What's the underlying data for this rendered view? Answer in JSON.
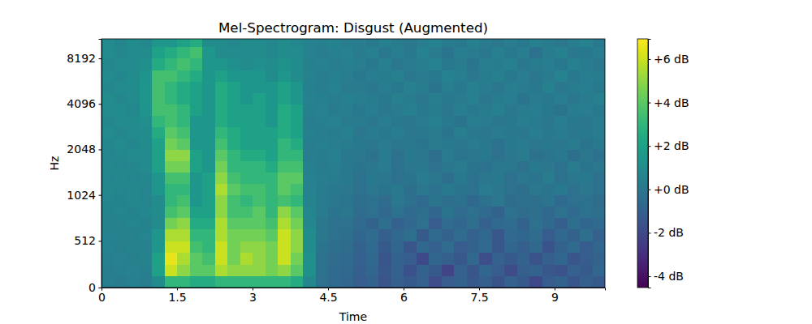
{
  "chart_data": {
    "type": "heatmap",
    "title": "Mel-Spectrogram: Disgust (Augmented)",
    "x_label": "Time",
    "y_label": "Hz",
    "xlim": [
      0,
      10
    ],
    "ylim": [
      0,
      11025
    ],
    "xticks": [
      0,
      1.5,
      3,
      4.5,
      6,
      7.5,
      9
    ],
    "yticks": [
      0,
      512,
      1024,
      2048,
      4096,
      8192
    ],
    "log": "y",
    "color": "viridis",
    "x_bins": [
      0,
      0.25,
      0.5,
      0.75,
      1,
      1.25,
      1.5,
      1.75,
      2,
      2.25,
      2.5,
      2.75,
      3,
      3.25,
      3.5,
      3.75,
      4,
      4.25,
      4.5,
      4.75,
      5,
      5.25,
      5.5,
      5.75,
      6,
      6.25,
      6.5,
      6.75,
      7,
      7.25,
      7.5,
      7.75,
      8,
      8.25,
      8.5,
      8.75,
      9,
      9.25,
      9.5,
      9.75,
      10
    ],
    "y_bins": [
      0,
      128,
      256,
      384,
      512,
      640,
      768,
      896,
      1024,
      1218,
      1448,
      1722,
      2048,
      2435,
      2896,
      3444,
      4096,
      4871,
      5793,
      6889,
      8192,
      9742,
      11025
    ],
    "cells": [
      [
        0.3,
        0.2,
        0.4,
        0.3,
        1,
        3,
        3,
        2.5,
        2.5,
        3,
        3,
        3,
        3,
        3,
        3,
        2.5,
        0.8,
        -0.3,
        -0.6,
        -0.8,
        -1.2,
        -0.9,
        -1.5,
        -1.1,
        -1.3,
        -1,
        -1.8,
        -1.2,
        -0.9,
        -1.4,
        -1.1,
        -1.6,
        -1,
        -1.3,
        -2,
        -1.2,
        -0.9,
        -1.5,
        -1.1,
        -1.3
      ],
      [
        0.3,
        0.4,
        0.5,
        0.4,
        2,
        6,
        5,
        4,
        4,
        5.5,
        5,
        5,
        5,
        4.5,
        5,
        4,
        1.2,
        -0.2,
        -0.6,
        -0.7,
        -1.1,
        -0.8,
        -1.4,
        -1,
        -1.7,
        -0.9,
        -1.3,
        -2.2,
        -1,
        -1.5,
        -0.8,
        -1.2,
        -1.9,
        -1.1,
        -0.9,
        -1.4,
        -1.6,
        -1,
        -1.3,
        -0.8
      ],
      [
        0.4,
        0.5,
        0.4,
        0.6,
        2,
        6.5,
        5.5,
        4,
        3.5,
        6,
        4.5,
        5.5,
        5,
        4.5,
        6,
        4.5,
        1.2,
        -0.2,
        -0.5,
        -0.6,
        -1,
        -0.7,
        -1.5,
        -0.9,
        -1.2,
        -2,
        -0.8,
        -1.1,
        -1.4,
        -0.7,
        -1.8,
        -1,
        -1.3,
        -0.9,
        -1.6,
        -1.1,
        -0.8,
        -1.5,
        -1.2,
        -0.9
      ],
      [
        0.5,
        0.4,
        0.6,
        0.5,
        1.5,
        6,
        6,
        3.5,
        3,
        6,
        4.5,
        5,
        5,
        4.5,
        6,
        5,
        1,
        -0.1,
        -0.4,
        -0.5,
        -0.9,
        -0.6,
        -1.3,
        -0.8,
        -1.5,
        -0.7,
        -1,
        -0.5,
        -1.2,
        -0.9,
        -0.6,
        -1.4,
        -0.8,
        -1.1,
        -0.7,
        -1.6,
        -0.9,
        -0.6,
        -1.2,
        -0.8
      ],
      [
        0.5,
        0.6,
        0.5,
        0.7,
        1.5,
        5.5,
        5.5,
        3,
        3,
        5.5,
        4.5,
        4.5,
        4.5,
        4,
        6,
        5,
        1,
        0,
        -0.3,
        -0.4,
        -0.8,
        -0.5,
        -1.1,
        -0.7,
        -0.4,
        -1.3,
        -0.6,
        -0.9,
        -0.5,
        -1,
        -0.7,
        -1.4,
        -0.6,
        -0.8,
        -0.5,
        -1.2,
        -0.7,
        -0.9,
        -0.4,
        -1
      ],
      [
        0.6,
        0.5,
        0.7,
        0.6,
        1,
        4.5,
        5,
        2.5,
        2.5,
        5.5,
        4,
        4,
        4,
        3.5,
        5.5,
        4.5,
        0.8,
        0,
        -0.2,
        -0.3,
        -0.6,
        -0.9,
        -0.4,
        -1,
        -0.7,
        -0.3,
        -1.2,
        -0.5,
        -0.8,
        -0.4,
        -1,
        -0.6,
        -0.5,
        -0.9,
        -0.3,
        -0.7,
        -1.1,
        -0.4,
        -0.8,
        -0.6
      ],
      [
        0.6,
        0.7,
        0.6,
        0.8,
        1,
        3.5,
        4,
        2,
        2,
        5,
        3.5,
        3.5,
        4,
        3,
        5,
        4,
        0.7,
        0.2,
        -0.1,
        0,
        -0.5,
        -0.3,
        -0.7,
        -0.2,
        -0.6,
        -0.4,
        -0.8,
        -0.1,
        -0.5,
        -0.3,
        -0.6,
        -0.9,
        -0.2,
        -0.5,
        -0.4,
        -0.7,
        -0.3,
        -0.6,
        -0.2,
        -0.4
      ],
      [
        0.7,
        0.6,
        0.8,
        0.7,
        1,
        3,
        3.5,
        1.5,
        2,
        5,
        3.5,
        3,
        3.5,
        3,
        3.5,
        3,
        0.6,
        0.2,
        0,
        -0.1,
        -0.4,
        -0.2,
        -0.5,
        0,
        -0.3,
        -0.6,
        -0.1,
        -0.4,
        -0.2,
        -0.7,
        -0.3,
        0,
        -0.5,
        -0.2,
        -0.4,
        -0.1,
        -0.6,
        -0.3,
        -0.2,
        -0.5
      ],
      [
        0.8,
        0.7,
        0.8,
        0.7,
        1.5,
        3,
        3,
        1.5,
        2,
        5.5,
        4,
        3.5,
        3.5,
        3,
        4,
        3.5,
        0.5,
        0.2,
        0.1,
        0,
        -0.3,
        0,
        -0.1,
        0.1,
        -0.4,
        0,
        -0.2,
        0.1,
        -0.1,
        -0.3,
        0.2,
        0,
        -0.2,
        -0.4,
        0,
        -0.1,
        0.1,
        -0.3,
        0,
        -0.2
      ],
      [
        0.7,
        0.8,
        0.7,
        0.8,
        1.5,
        3.5,
        3.5,
        1.5,
        2,
        5,
        3.5,
        3,
        3,
        3,
        4,
        4,
        0.5,
        0.3,
        0.2,
        0.1,
        -0.2,
        0.1,
        0,
        -0.3,
        -0.1,
        0.2,
        0,
        -0.4,
        0.1,
        -0.2,
        0,
        0.1,
        -0.3,
        0,
        -0.1,
        0.2,
        -0.2,
        0,
        0.1,
        -0.3
      ],
      [
        0.8,
        0.7,
        0.8,
        0.9,
        2,
        4.5,
        4.5,
        2,
        1.5,
        4.5,
        3,
        3,
        3,
        2.5,
        3.5,
        3.5,
        0.4,
        0.2,
        0.3,
        0.1,
        -0.1,
        0,
        0.2,
        -0.2,
        0,
        0.1,
        -0.3,
        0,
        0.2,
        -0.1,
        -0.2,
        0.1,
        0,
        -0.3,
        0.1,
        0,
        -0.2,
        0.2,
        -0.1,
        0
      ],
      [
        0.7,
        0.8,
        0.9,
        0.9,
        2,
        5,
        5,
        2,
        1.5,
        4,
        3,
        2.5,
        2.5,
        2,
        3,
        3,
        0.3,
        0.2,
        0.4,
        0.1,
        0,
        -0.2,
        0.2,
        -0.3,
        0.1,
        0,
        -0.4,
        0.2,
        -0.1,
        0,
        0.1,
        -0.3,
        0,
        0.2,
        -0.2,
        -0.1,
        0.1,
        -0.4,
        0,
        -0.2
      ],
      [
        0.8,
        0.9,
        0.8,
        1,
        2,
        4.5,
        4,
        1.5,
        1.5,
        3.5,
        2.5,
        2,
        2,
        2,
        3,
        2.5,
        0.3,
        0.4,
        0.3,
        0.2,
        0.1,
        0,
        0.2,
        0,
        0.1,
        -0.1,
        0.2,
        0.1,
        0,
        0.2,
        0.1,
        -0.2,
        0.1,
        0.2,
        0,
        0.1,
        0,
        0.2,
        -0.1,
        0.1
      ],
      [
        0.9,
        0.8,
        0.9,
        1,
        2.5,
        4,
        3.5,
        1.5,
        1.5,
        3,
        2.5,
        2,
        2,
        2,
        2.5,
        2,
        0.4,
        0.3,
        0.2,
        0.4,
        0,
        0.2,
        0.1,
        0.3,
        0,
        0.1,
        0.2,
        -0.1,
        0.3,
        0.1,
        0,
        0.2,
        0.1,
        0,
        0.3,
        0.1,
        0.2,
        0,
        0.1,
        0.2
      ],
      [
        0.8,
        0.9,
        1,
        1.2,
        3,
        3.5,
        3,
        1.5,
        1.5,
        2.5,
        2,
        2,
        2,
        1.5,
        2.5,
        2,
        0.3,
        0.4,
        0.5,
        0.2,
        0.2,
        0,
        0.3,
        0.1,
        0,
        0.2,
        0.4,
        0.1,
        -0.1,
        0.3,
        0.2,
        0,
        0.1,
        0.3,
        0.2,
        0,
        0.3,
        0.1,
        0,
        0.2
      ],
      [
        0.9,
        1,
        0.8,
        1.4,
        3.5,
        3.5,
        3,
        2,
        1.5,
        2.5,
        2,
        2,
        2,
        1.5,
        2.5,
        2,
        0.4,
        0.5,
        0.2,
        0.3,
        0.1,
        0.3,
        0,
        0.2,
        0.4,
        0.1,
        0.2,
        0,
        0.3,
        0.1,
        0.2,
        0.4,
        0,
        0.2,
        0.3,
        0.1,
        -0.1,
        0.2,
        0.3,
        0.1
      ],
      [
        1,
        0.8,
        0.9,
        1.5,
        3.5,
        3,
        2.5,
        2,
        1.5,
        2.5,
        2,
        1.5,
        2,
        1.5,
        2,
        1.5,
        0.5,
        0.4,
        0.3,
        0.4,
        0.3,
        0.2,
        0.1,
        0.4,
        0.2,
        0,
        0.3,
        0.1,
        0.2,
        0.4,
        0,
        0.2,
        0.3,
        -0.1,
        0.2,
        0.1,
        0.3,
        0,
        0.2,
        0.4
      ],
      [
        0.8,
        0.9,
        1,
        1.5,
        3.5,
        3,
        2.5,
        2,
        1.5,
        2.5,
        2,
        1.5,
        1.5,
        1.5,
        2,
        1.5,
        0.4,
        0.3,
        0.5,
        0.2,
        0.2,
        0,
        0.3,
        0.1,
        0.4,
        0.2,
        -0.1,
        0.3,
        0.1,
        0.4,
        0.2,
        0,
        0.3,
        0.2,
        0.1,
        0.4,
        0,
        0.2,
        0.3,
        0.1
      ],
      [
        0.9,
        0.8,
        1,
        1.4,
        3.5,
        3.5,
        3,
        2.5,
        1.5,
        2,
        1.5,
        1.5,
        1.5,
        1,
        1.5,
        1,
        0.5,
        0.3,
        0.4,
        0.3,
        0.1,
        0.3,
        0.2,
        0.4,
        0,
        0.2,
        0.1,
        0.5,
        0.3,
        0,
        0.2,
        0.4,
        0.1,
        0.3,
        0,
        0.2,
        0.5,
        0.1,
        0.3,
        0.2
      ],
      [
        0.8,
        1,
        0.9,
        1.2,
        2.5,
        3,
        3.5,
        3,
        1.5,
        1.5,
        1.2,
        1,
        1.2,
        1,
        1.3,
        1,
        0.4,
        0.5,
        0.3,
        0.4,
        0.3,
        0.1,
        0.4,
        0,
        0.2,
        0.3,
        0.5,
        0.1,
        0.2,
        -0.1,
        0.3,
        0.2,
        0.4,
        0,
        0.2,
        0.3,
        0.1,
        0.4,
        0.2,
        0
      ],
      [
        1,
        0.8,
        0.9,
        1,
        2,
        2.5,
        3,
        3.5,
        1.5,
        1,
        1,
        0.9,
        1,
        0.8,
        1,
        0.9,
        0.5,
        0.3,
        0.4,
        0.5,
        0.2,
        0.4,
        0,
        0.3,
        0.1,
        0.5,
        0.2,
        -0.1,
        0.3,
        0.2,
        0,
        0.4,
        0.1,
        0.3,
        -0.2,
        0.2,
        0.4,
        0,
        0.1,
        0.3
      ],
      [
        0.9,
        0.7,
        1,
        0.8,
        1.5,
        1.5,
        2,
        2.5,
        1,
        1,
        0.8,
        1,
        0.9,
        0.8,
        1,
        0.8,
        0.5,
        0.4,
        0.6,
        0.3,
        0.3,
        0.1,
        0.4,
        0.2,
        0,
        0.3,
        0.5,
        0.2,
        0.1,
        0.4,
        0.2,
        0,
        0.3,
        0.1,
        0.4,
        0.2,
        0,
        0.3,
        0.5,
        0.1
      ]
    ],
    "colorbar": {
      "range": [
        -4.52,
        6.93
      ],
      "ticks": [
        {
          "value": -4,
          "label": "-4 dB"
        },
        {
          "value": -2,
          "label": "-2 dB"
        },
        {
          "value": 0,
          "label": "+0 dB"
        },
        {
          "value": 2,
          "label": "+2 dB"
        },
        {
          "value": 4,
          "label": "+4 dB"
        },
        {
          "value": 6,
          "label": "+6 dB"
        }
      ]
    }
  }
}
